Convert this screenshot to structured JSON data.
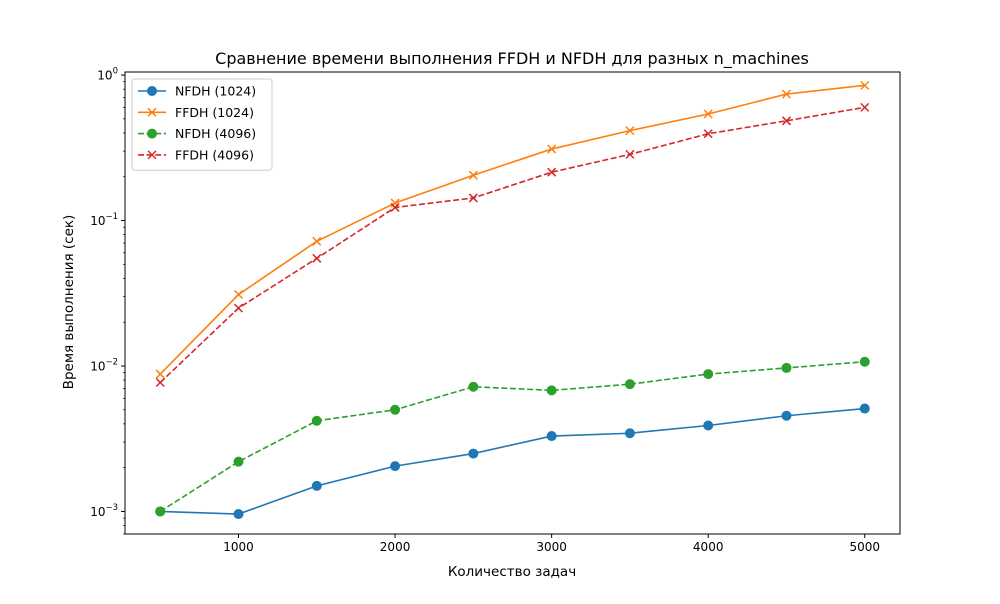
{
  "chart_data": {
    "type": "line",
    "title": "Сравнение времени выполнения FFDH и NFDH для разных n_machines",
    "xlabel": "Количество задач",
    "ylabel": "Время выполнения (сек)",
    "yscale": "log",
    "grid": false,
    "legend_position": "top-left",
    "xlim": [
      275,
      5225
    ],
    "ylim": [
      0.0007,
      1.05
    ],
    "x_ticks": [
      1000,
      2000,
      3000,
      4000,
      5000
    ],
    "x_tick_labels": [
      "1000",
      "2000",
      "3000",
      "4000",
      "5000"
    ],
    "y_ticks": [
      0.001,
      0.01,
      0.1,
      1
    ],
    "y_tick_labels": [
      {
        "base": "10",
        "exp": "−3"
      },
      {
        "base": "10",
        "exp": "−2"
      },
      {
        "base": "10",
        "exp": "−1"
      },
      {
        "base": "10",
        "exp": "0"
      }
    ],
    "x": [
      500,
      1000,
      1500,
      2000,
      2500,
      3000,
      3500,
      4000,
      4500,
      5000
    ],
    "series": [
      {
        "name": "NFDH (1024)",
        "color": "#1f77b4",
        "line_style": "solid",
        "marker": "circle",
        "values": [
          0.001,
          0.00096,
          0.0015,
          0.00205,
          0.0025,
          0.0033,
          0.00345,
          0.0039,
          0.00455,
          0.0051
        ]
      },
      {
        "name": "FFDH (1024)",
        "color": "#ff7f0e",
        "line_style": "solid",
        "marker": "x",
        "values": [
          0.0088,
          0.031,
          0.072,
          0.132,
          0.205,
          0.31,
          0.415,
          0.54,
          0.74,
          0.85
        ]
      },
      {
        "name": "NFDH (4096)",
        "color": "#2ca02c",
        "line_style": "dashed",
        "marker": "circle",
        "values": [
          0.001,
          0.0022,
          0.0042,
          0.005,
          0.0072,
          0.0068,
          0.0075,
          0.0088,
          0.0097,
          0.0107
        ]
      },
      {
        "name": "FFDH (4096)",
        "color": "#d62728",
        "line_style": "dashed",
        "marker": "x",
        "values": [
          0.0077,
          0.025,
          0.055,
          0.123,
          0.143,
          0.215,
          0.285,
          0.395,
          0.485,
          0.6
        ]
      }
    ]
  }
}
